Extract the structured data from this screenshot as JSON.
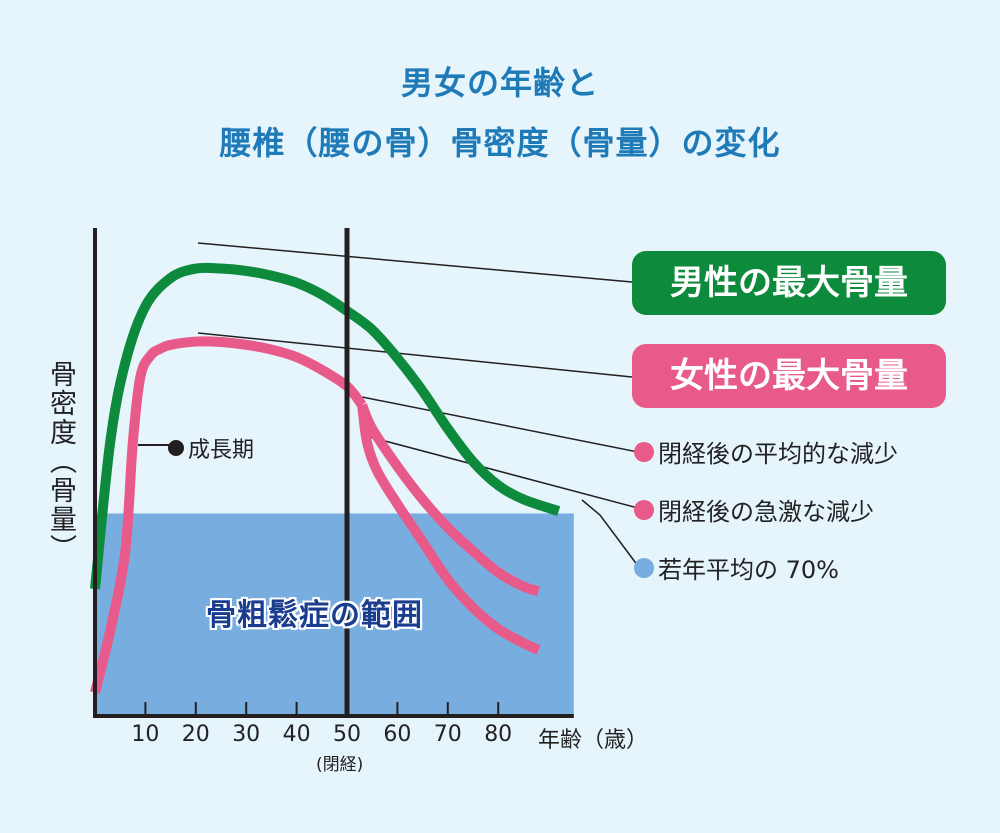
{
  "title": {
    "line1": "男女の年齢と",
    "line2": "腰椎（腰の骨）骨密度（骨量）の変化"
  },
  "chart_data": {
    "type": "line",
    "ylabel": "骨密度（骨量）",
    "xlabel": "年齢（歳）",
    "x_ticks": [
      "10",
      "20",
      "30",
      "40",
      "50",
      "60",
      "70",
      "80"
    ],
    "menopause_label": "(閉経)",
    "menopause_age": 50,
    "xlim": [
      0,
      95
    ],
    "ylim": [
      0,
      100
    ],
    "series": [
      {
        "name": "男性の最大骨量",
        "color": "#0d8a3c",
        "x": [
          0,
          3,
          6,
          10,
          15,
          20,
          25,
          30,
          35,
          40,
          45,
          50,
          55,
          60,
          65,
          70,
          75,
          80,
          85,
          92
        ],
        "y": [
          27,
          58,
          75,
          87,
          93,
          95,
          95,
          94.5,
          93.5,
          92,
          89.5,
          86,
          82,
          76,
          69,
          61,
          54,
          49,
          46,
          43.5
        ]
      },
      {
        "name": "女性の最大骨量",
        "color": "#e85a8a",
        "x": [
          0,
          3,
          6,
          7.5,
          9,
          11,
          13,
          15,
          20,
          25,
          30,
          35,
          40,
          45,
          50,
          53
        ],
        "y": [
          5,
          18,
          35,
          58,
          72,
          76.5,
          78,
          78.8,
          79.5,
          79.4,
          78.8,
          77.8,
          76.2,
          73.5,
          70,
          66
        ]
      },
      {
        "name": "閉経後の平均的な減少",
        "color": "#e85a8a",
        "x": [
          53,
          55,
          60,
          65,
          70,
          75,
          80,
          85,
          88
        ],
        "y": [
          66,
          61,
          53,
          46,
          40,
          35,
          30.5,
          27.5,
          26.5
        ]
      },
      {
        "name": "閉経後の急激な減少",
        "color": "#e85a8a",
        "x": [
          53,
          54,
          56,
          60,
          65,
          70,
          75,
          80,
          85,
          88
        ],
        "y": [
          66,
          58,
          52,
          45,
          37,
          29,
          23,
          18.5,
          15.5,
          14
        ]
      }
    ],
    "reference": {
      "name": "若年平均の 70%",
      "color": "#78ade0",
      "y": 43,
      "x_range": [
        0,
        95
      ]
    },
    "phase_annotation": {
      "label": "成長期",
      "x": 7
    },
    "area_label": "骨粗鬆症の範囲"
  },
  "legend": {
    "male_peak": "男性の最大骨量",
    "female_peak": "女性の最大骨量",
    "avg_decline": "閉経後の平均的な減少",
    "rapid_decline": "閉経後の急激な減少",
    "young_70": "若年平均の 70%",
    "dot_color_pink": "#e85a8a",
    "dot_color_blue": "#78ade0"
  }
}
